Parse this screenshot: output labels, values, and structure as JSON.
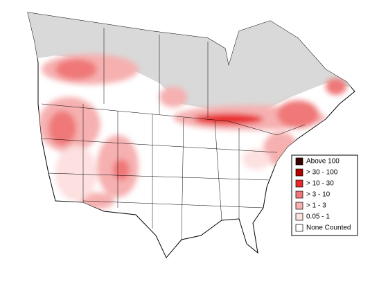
{
  "legend": {
    "items": [
      {
        "label": "Above 100",
        "color": "#3c0000"
      },
      {
        "label": "> 30 - 100",
        "color": "#b00000"
      },
      {
        "label": "> 10 - 30",
        "color": "#e82a2a"
      },
      {
        "label": "> 3 - 10",
        "color": "#f07878"
      },
      {
        "label": "> 1 - 3",
        "color": "#f6b0b0"
      },
      {
        "label": "0.05 - 1",
        "color": "#fde0e0"
      },
      {
        "label": "None Counted",
        "color": "#ffffff"
      }
    ]
  }
}
